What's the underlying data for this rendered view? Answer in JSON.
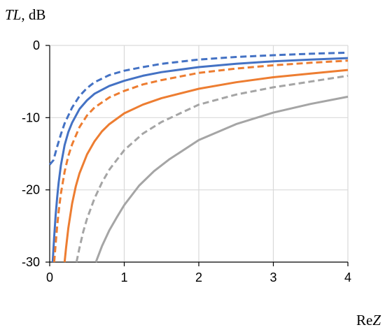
{
  "chart_data": {
    "type": "line",
    "title": "",
    "ylabel_var": "TL",
    "ylabel_unit": ", dB",
    "xlabel_prefix": "Re",
    "xlabel_var": "Z",
    "xlim": [
      0,
      4
    ],
    "ylim": [
      -30,
      0
    ],
    "x_ticks": [
      0,
      1,
      2,
      3,
      4
    ],
    "y_ticks": [
      0,
      -10,
      -20,
      -30
    ],
    "x_tick_labels": [
      "0",
      "1",
      "2",
      "3",
      "4"
    ],
    "y_tick_labels": [
      "0",
      "-10",
      "-20",
      "-30"
    ],
    "grid": true,
    "legend": "none",
    "series": [
      {
        "color": "#4472c4",
        "dash": true,
        "x": [
          0,
          0.05,
          0.1,
          0.15,
          0.2,
          0.3,
          0.4,
          0.5,
          0.6,
          0.8,
          1.0,
          1.25,
          1.5,
          2.0,
          2.5,
          3.0,
          3.5,
          4.0
        ],
        "y": [
          -16.5,
          -15.9,
          -14,
          -12.3,
          -10.8,
          -8.6,
          -7.0,
          -5.9,
          -5.1,
          -4.1,
          -3.5,
          -3.0,
          -2.55,
          -1.95,
          -1.6,
          -1.35,
          -1.15,
          -1.0
        ]
      },
      {
        "color": "#4472c4",
        "dash": false,
        "x": [
          0.04,
          0.06,
          0.08,
          0.1,
          0.12,
          0.15,
          0.2,
          0.25,
          0.3,
          0.4,
          0.5,
          0.6,
          0.8,
          1.0,
          1.25,
          1.5,
          2.0,
          2.5,
          3.0,
          3.5,
          4.0
        ],
        "y": [
          -30,
          -26.5,
          -23.5,
          -21,
          -19,
          -16.6,
          -13.8,
          -12.0,
          -10.7,
          -8.8,
          -7.6,
          -6.7,
          -5.6,
          -4.9,
          -4.2,
          -3.7,
          -3.0,
          -2.55,
          -2.2,
          -1.95,
          -1.75
        ]
      },
      {
        "color": "#ed7d31",
        "dash": true,
        "x": [
          0.06,
          0.08,
          0.1,
          0.12,
          0.15,
          0.2,
          0.25,
          0.3,
          0.4,
          0.5,
          0.6,
          0.8,
          1.0,
          1.25,
          1.5,
          2.0,
          2.5,
          3.0,
          3.5,
          4.0
        ],
        "y": [
          -30,
          -27.5,
          -25,
          -23,
          -20.5,
          -17.5,
          -15.3,
          -13.7,
          -11.3,
          -9.7,
          -8.6,
          -7.2,
          -6.3,
          -5.4,
          -4.8,
          -3.8,
          -3.2,
          -2.75,
          -2.4,
          -2.1
        ]
      },
      {
        "color": "#ed7d31",
        "dash": false,
        "x": [
          0.2,
          0.22,
          0.25,
          0.3,
          0.35,
          0.4,
          0.5,
          0.6,
          0.7,
          0.8,
          1.0,
          1.25,
          1.5,
          2.0,
          2.5,
          3.0,
          3.5,
          4.0
        ],
        "y": [
          -30,
          -28,
          -25.3,
          -21.9,
          -19.5,
          -17.7,
          -15.1,
          -13.3,
          -11.9,
          -10.9,
          -9.4,
          -8.2,
          -7.3,
          -6.0,
          -5.1,
          -4.4,
          -3.9,
          -3.4
        ]
      },
      {
        "color": "#a5a5a5",
        "dash": true,
        "x": [
          0.36,
          0.4,
          0.45,
          0.5,
          0.6,
          0.7,
          0.8,
          1.0,
          1.25,
          1.5,
          2.0,
          2.5,
          3.0,
          3.5,
          4.0
        ],
        "y": [
          -30,
          -28,
          -25.8,
          -24,
          -21.2,
          -19.0,
          -17.2,
          -14.5,
          -12.2,
          -10.6,
          -8.2,
          -6.8,
          -5.8,
          -5.0,
          -4.2
        ]
      },
      {
        "color": "#a5a5a5",
        "dash": false,
        "x": [
          0.62,
          0.7,
          0.8,
          0.9,
          1.0,
          1.2,
          1.4,
          1.6,
          2.0,
          2.5,
          3.0,
          3.5,
          4.0
        ],
        "y": [
          -30,
          -27.8,
          -25.6,
          -23.8,
          -22.1,
          -19.4,
          -17.4,
          -15.8,
          -13.1,
          -10.9,
          -9.3,
          -8.1,
          -7.1
        ]
      }
    ]
  }
}
